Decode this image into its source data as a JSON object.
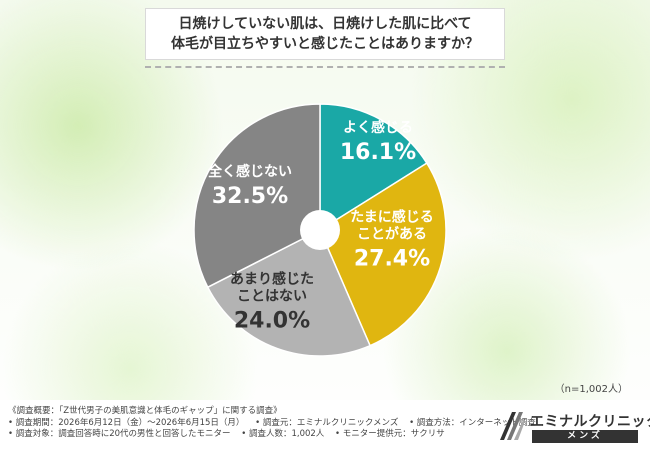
{
  "title": {
    "line1": "日焼けしていない肌は、日焼けした肌に比べて",
    "line2": "体毛が目立ちやすいと感じたことはありますか？"
  },
  "chart_data": {
    "type": "pie",
    "series": [
      {
        "label_lines": [
          "よく感じる"
        ],
        "value": 16.1,
        "value_label": "16.1%",
        "color": "#1aa8a6",
        "label_color": "#ffffff"
      },
      {
        "label_lines": [
          "たまに感じる",
          "ことがある"
        ],
        "value": 27.4,
        "value_label": "27.4%",
        "color": "#e0b610",
        "label_color": "#ffffff"
      },
      {
        "label_lines": [
          "あまり感じた",
          "ことはない"
        ],
        "value": 24.0,
        "value_label": "24.0%",
        "color": "#b3b3b3",
        "label_color": "#333333"
      },
      {
        "label_lines": [
          "全く感じない"
        ],
        "value": 32.5,
        "value_label": "32.5%",
        "color": "#858585",
        "label_color": "#ffffff"
      }
    ],
    "donut": true
  },
  "sample_size": "（n=1,002人）",
  "footer": {
    "line1": "《調査概要：「Z世代男子の美肌意識と体毛のギャップ」に関する調査》",
    "line2a": "• 調査期間：2026年6月12日（金）～2026年6月15日（月）",
    "line2b": "• 調査元：エミナルクリニックメンズ",
    "line2c": "• 調査方法：インターネット調査",
    "line3a": "• 調査対象：調査回答時に20代の男性と回答したモニター",
    "line3b": "• 調査人数：1,002人",
    "line3c": "• モニター提供元：サクリサ"
  },
  "brand": {
    "name": "エミナルクリニック",
    "sub": "メンズ"
  }
}
